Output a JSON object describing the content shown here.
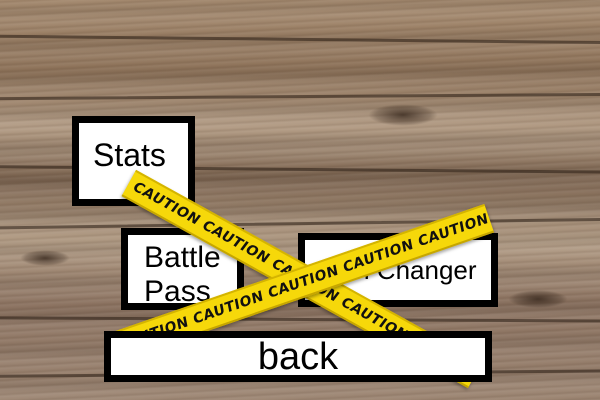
{
  "menu": {
    "stats_label": "Stats",
    "battle_pass_label": "Battle Pass",
    "skin_changer_label": "Skin Changer",
    "back_label": "back"
  },
  "caution_tape": {
    "text": "CAUTION CAUTION CAUTION CAUTION CAUTION CAUTION",
    "color": "#f6d80a",
    "text_color": "#111111"
  },
  "colors": {
    "button_background": "#ffffff",
    "button_border": "#000000"
  }
}
